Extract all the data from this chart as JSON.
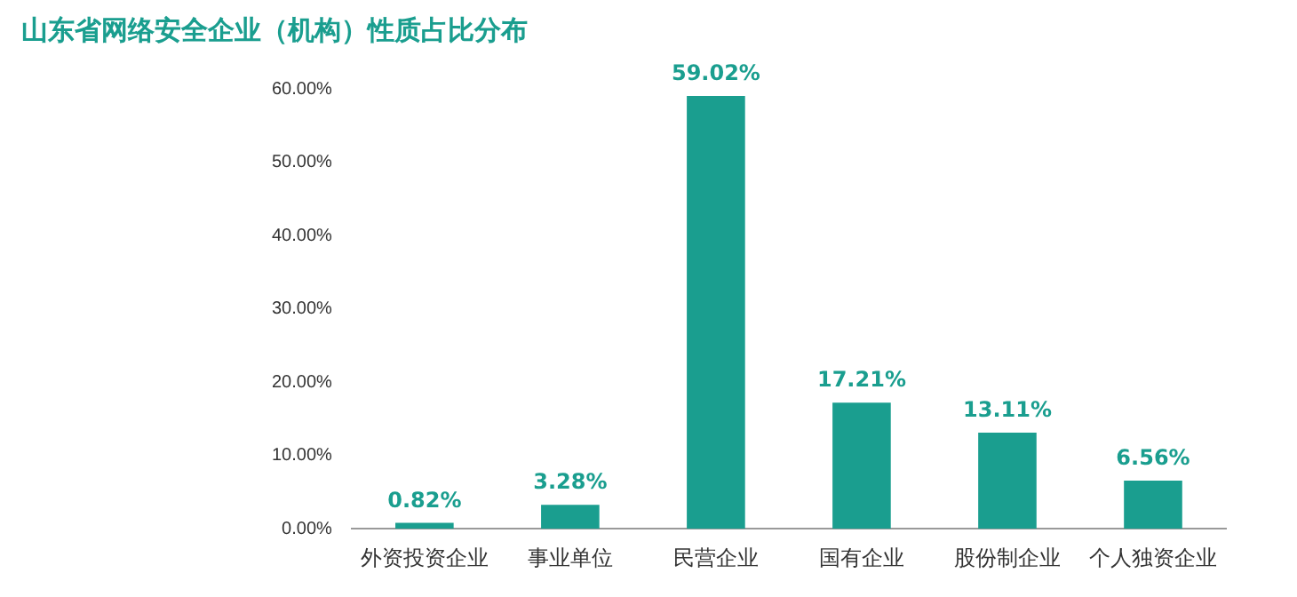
{
  "chart_data": {
    "type": "bar",
    "title": "山东省网络安全企业（机构）性质占比分布",
    "categories": [
      "外资投资企业",
      "事业单位",
      "民营企业",
      "国有企业",
      "股份制企业",
      "个人独资企业"
    ],
    "values": [
      0.82,
      3.28,
      59.02,
      17.21,
      13.11,
      6.56
    ],
    "color": "#1a9e8f",
    "ylim": [
      0,
      60
    ],
    "yticks": [
      {
        "value": 0,
        "label": "0.00%"
      },
      {
        "value": 10,
        "label": "10.00%"
      },
      {
        "value": 20,
        "label": "20.00%"
      },
      {
        "value": 30,
        "label": "30.00%"
      },
      {
        "value": 40,
        "label": "40.00%"
      },
      {
        "value": 50,
        "label": "50.00%"
      },
      {
        "value": 60,
        "label": "60.00%"
      }
    ],
    "value_labels": [
      "0.82%",
      "3.28%",
      "59.02%",
      "17.21%",
      "13.11%",
      "6.56%"
    ],
    "grid": false,
    "legend": false
  }
}
